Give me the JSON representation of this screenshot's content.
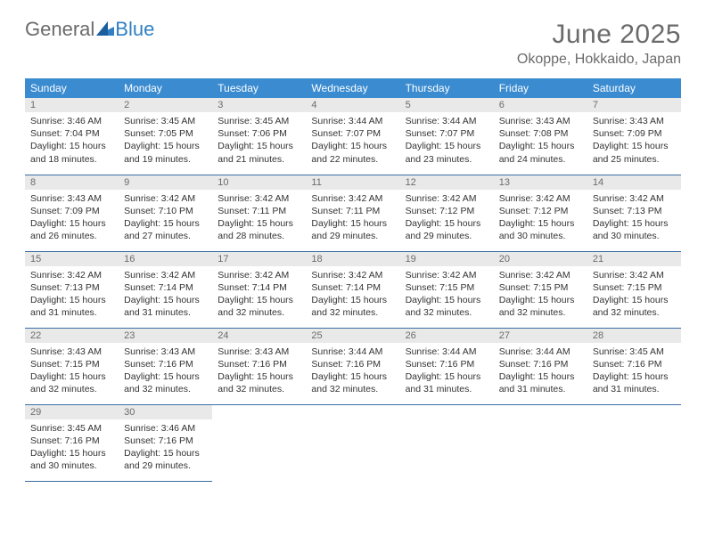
{
  "colors": {
    "header_bg": "#3a8bd0",
    "header_text": "#ffffff",
    "daynum_bg": "#e9e9e9",
    "daynum_text": "#6b6b6b",
    "cell_border": "#3a6ea5",
    "title_text": "#6b6b6b",
    "body_text": "#333333",
    "logo_gray": "#6b6b6b",
    "logo_blue": "#2f7fc2"
  },
  "logo": {
    "part1": "General",
    "part2": "Blue"
  },
  "title": "June 2025",
  "location": "Okoppe, Hokkaido, Japan",
  "weekdays": [
    "Sunday",
    "Monday",
    "Tuesday",
    "Wednesday",
    "Thursday",
    "Friday",
    "Saturday"
  ],
  "weeks": [
    [
      {
        "n": "1",
        "sr": "Sunrise: 3:46 AM",
        "ss": "Sunset: 7:04 PM",
        "d1": "Daylight: 15 hours",
        "d2": "and 18 minutes."
      },
      {
        "n": "2",
        "sr": "Sunrise: 3:45 AM",
        "ss": "Sunset: 7:05 PM",
        "d1": "Daylight: 15 hours",
        "d2": "and 19 minutes."
      },
      {
        "n": "3",
        "sr": "Sunrise: 3:45 AM",
        "ss": "Sunset: 7:06 PM",
        "d1": "Daylight: 15 hours",
        "d2": "and 21 minutes."
      },
      {
        "n": "4",
        "sr": "Sunrise: 3:44 AM",
        "ss": "Sunset: 7:07 PM",
        "d1": "Daylight: 15 hours",
        "d2": "and 22 minutes."
      },
      {
        "n": "5",
        "sr": "Sunrise: 3:44 AM",
        "ss": "Sunset: 7:07 PM",
        "d1": "Daylight: 15 hours",
        "d2": "and 23 minutes."
      },
      {
        "n": "6",
        "sr": "Sunrise: 3:43 AM",
        "ss": "Sunset: 7:08 PM",
        "d1": "Daylight: 15 hours",
        "d2": "and 24 minutes."
      },
      {
        "n": "7",
        "sr": "Sunrise: 3:43 AM",
        "ss": "Sunset: 7:09 PM",
        "d1": "Daylight: 15 hours",
        "d2": "and 25 minutes."
      }
    ],
    [
      {
        "n": "8",
        "sr": "Sunrise: 3:43 AM",
        "ss": "Sunset: 7:09 PM",
        "d1": "Daylight: 15 hours",
        "d2": "and 26 minutes."
      },
      {
        "n": "9",
        "sr": "Sunrise: 3:42 AM",
        "ss": "Sunset: 7:10 PM",
        "d1": "Daylight: 15 hours",
        "d2": "and 27 minutes."
      },
      {
        "n": "10",
        "sr": "Sunrise: 3:42 AM",
        "ss": "Sunset: 7:11 PM",
        "d1": "Daylight: 15 hours",
        "d2": "and 28 minutes."
      },
      {
        "n": "11",
        "sr": "Sunrise: 3:42 AM",
        "ss": "Sunset: 7:11 PM",
        "d1": "Daylight: 15 hours",
        "d2": "and 29 minutes."
      },
      {
        "n": "12",
        "sr": "Sunrise: 3:42 AM",
        "ss": "Sunset: 7:12 PM",
        "d1": "Daylight: 15 hours",
        "d2": "and 29 minutes."
      },
      {
        "n": "13",
        "sr": "Sunrise: 3:42 AM",
        "ss": "Sunset: 7:12 PM",
        "d1": "Daylight: 15 hours",
        "d2": "and 30 minutes."
      },
      {
        "n": "14",
        "sr": "Sunrise: 3:42 AM",
        "ss": "Sunset: 7:13 PM",
        "d1": "Daylight: 15 hours",
        "d2": "and 30 minutes."
      }
    ],
    [
      {
        "n": "15",
        "sr": "Sunrise: 3:42 AM",
        "ss": "Sunset: 7:13 PM",
        "d1": "Daylight: 15 hours",
        "d2": "and 31 minutes."
      },
      {
        "n": "16",
        "sr": "Sunrise: 3:42 AM",
        "ss": "Sunset: 7:14 PM",
        "d1": "Daylight: 15 hours",
        "d2": "and 31 minutes."
      },
      {
        "n": "17",
        "sr": "Sunrise: 3:42 AM",
        "ss": "Sunset: 7:14 PM",
        "d1": "Daylight: 15 hours",
        "d2": "and 32 minutes."
      },
      {
        "n": "18",
        "sr": "Sunrise: 3:42 AM",
        "ss": "Sunset: 7:14 PM",
        "d1": "Daylight: 15 hours",
        "d2": "and 32 minutes."
      },
      {
        "n": "19",
        "sr": "Sunrise: 3:42 AM",
        "ss": "Sunset: 7:15 PM",
        "d1": "Daylight: 15 hours",
        "d2": "and 32 minutes."
      },
      {
        "n": "20",
        "sr": "Sunrise: 3:42 AM",
        "ss": "Sunset: 7:15 PM",
        "d1": "Daylight: 15 hours",
        "d2": "and 32 minutes."
      },
      {
        "n": "21",
        "sr": "Sunrise: 3:42 AM",
        "ss": "Sunset: 7:15 PM",
        "d1": "Daylight: 15 hours",
        "d2": "and 32 minutes."
      }
    ],
    [
      {
        "n": "22",
        "sr": "Sunrise: 3:43 AM",
        "ss": "Sunset: 7:15 PM",
        "d1": "Daylight: 15 hours",
        "d2": "and 32 minutes."
      },
      {
        "n": "23",
        "sr": "Sunrise: 3:43 AM",
        "ss": "Sunset: 7:16 PM",
        "d1": "Daylight: 15 hours",
        "d2": "and 32 minutes."
      },
      {
        "n": "24",
        "sr": "Sunrise: 3:43 AM",
        "ss": "Sunset: 7:16 PM",
        "d1": "Daylight: 15 hours",
        "d2": "and 32 minutes."
      },
      {
        "n": "25",
        "sr": "Sunrise: 3:44 AM",
        "ss": "Sunset: 7:16 PM",
        "d1": "Daylight: 15 hours",
        "d2": "and 32 minutes."
      },
      {
        "n": "26",
        "sr": "Sunrise: 3:44 AM",
        "ss": "Sunset: 7:16 PM",
        "d1": "Daylight: 15 hours",
        "d2": "and 31 minutes."
      },
      {
        "n": "27",
        "sr": "Sunrise: 3:44 AM",
        "ss": "Sunset: 7:16 PM",
        "d1": "Daylight: 15 hours",
        "d2": "and 31 minutes."
      },
      {
        "n": "28",
        "sr": "Sunrise: 3:45 AM",
        "ss": "Sunset: 7:16 PM",
        "d1": "Daylight: 15 hours",
        "d2": "and 31 minutes."
      }
    ],
    [
      {
        "n": "29",
        "sr": "Sunrise: 3:45 AM",
        "ss": "Sunset: 7:16 PM",
        "d1": "Daylight: 15 hours",
        "d2": "and 30 minutes."
      },
      {
        "n": "30",
        "sr": "Sunrise: 3:46 AM",
        "ss": "Sunset: 7:16 PM",
        "d1": "Daylight: 15 hours",
        "d2": "and 29 minutes."
      },
      null,
      null,
      null,
      null,
      null
    ]
  ]
}
